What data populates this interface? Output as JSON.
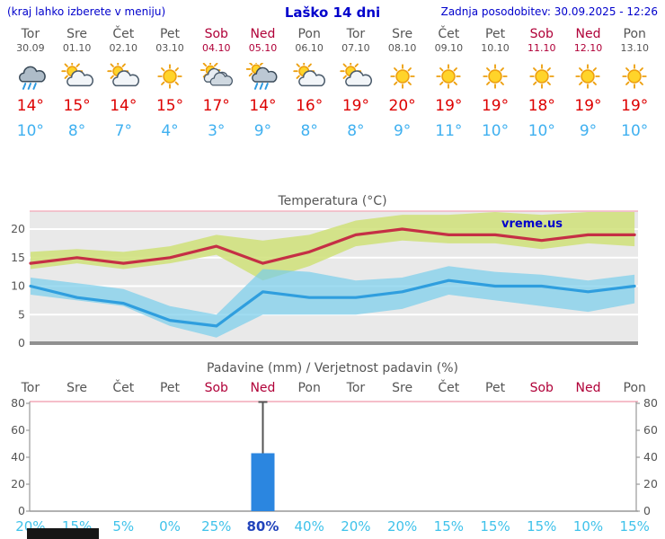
{
  "header": {
    "left": "(kraj lahko izberete v meniju)",
    "title": "Laško 14 dni",
    "right": "Zadnja posodobitev: 30.09.2025 - 12:26"
  },
  "branding": "vreme.us",
  "colors": {
    "link_blue": "#0000cc",
    "weekend_red": "#b00038",
    "tmax_red": "#dd0000",
    "tmin_blue": "#3fb0f0",
    "tmax_line": "#c52f45",
    "tmin_line": "#2f9ede",
    "tmax_band": "rgba(207,224,120,0.85)",
    "tmin_band": "rgba(120,205,235,0.70)",
    "bar_blue": "#2b86e0",
    "prob_cyan": "#3fc2ea",
    "prob_dark": "#2244bb",
    "chart_bg": "#e9e9e9",
    "pink_line": "#f2a8b8"
  },
  "days": [
    {
      "name": "Tor",
      "date": "30.09",
      "weekend": false,
      "icon": "rain",
      "tmax": 14,
      "tmin": 10
    },
    {
      "name": "Sre",
      "date": "01.10",
      "weekend": false,
      "icon": "partly",
      "tmax": 15,
      "tmin": 8
    },
    {
      "name": "Čet",
      "date": "02.10",
      "weekend": false,
      "icon": "partly",
      "tmax": 14,
      "tmin": 7
    },
    {
      "name": "Pet",
      "date": "03.10",
      "weekend": false,
      "icon": "sun",
      "tmax": 15,
      "tmin": 4
    },
    {
      "name": "Sob",
      "date": "04.10",
      "weekend": true,
      "icon": "cloudy",
      "tmax": 17,
      "tmin": 3
    },
    {
      "name": "Ned",
      "date": "05.10",
      "weekend": true,
      "icon": "rain-sun",
      "tmax": 14,
      "tmin": 9
    },
    {
      "name": "Pon",
      "date": "06.10",
      "weekend": false,
      "icon": "partly",
      "tmax": 16,
      "tmin": 8
    },
    {
      "name": "Tor",
      "date": "07.10",
      "weekend": false,
      "icon": "partly",
      "tmax": 19,
      "tmin": 8
    },
    {
      "name": "Sre",
      "date": "08.10",
      "weekend": false,
      "icon": "sun",
      "tmax": 20,
      "tmin": 9
    },
    {
      "name": "Čet",
      "date": "09.10",
      "weekend": false,
      "icon": "sun",
      "tmax": 19,
      "tmin": 11
    },
    {
      "name": "Pet",
      "date": "10.10",
      "weekend": false,
      "icon": "sun",
      "tmax": 19,
      "tmin": 10
    },
    {
      "name": "Sob",
      "date": "11.10",
      "weekend": true,
      "icon": "sun",
      "tmax": 18,
      "tmin": 10
    },
    {
      "name": "Ned",
      "date": "12.10",
      "weekend": true,
      "icon": "sun",
      "tmax": 19,
      "tmin": 9
    },
    {
      "name": "Pon",
      "date": "13.10",
      "weekend": false,
      "icon": "sun",
      "tmax": 19,
      "tmin": 10
    }
  ],
  "chart_data": [
    {
      "id": "temperature",
      "type": "line",
      "title": "Temperatura (°C)",
      "categories": [
        "Tor",
        "Sre",
        "Čet",
        "Pet",
        "Sob",
        "Ned",
        "Pon",
        "Tor",
        "Sre",
        "Čet",
        "Pet",
        "Sob",
        "Ned",
        "Pon"
      ],
      "ylim": [
        0,
        23
      ],
      "yticks": [
        0,
        5,
        10,
        15,
        20
      ],
      "grid": true,
      "watermark": "vreme.us",
      "series": [
        {
          "name": "tmax",
          "values": [
            14,
            15,
            14,
            15,
            17,
            14,
            16,
            19,
            20,
            19,
            19,
            18,
            19,
            19
          ]
        },
        {
          "name": "tmin",
          "values": [
            10,
            8,
            7,
            4,
            3,
            9,
            8,
            8,
            9,
            11,
            10,
            10,
            9,
            10
          ]
        },
        {
          "name": "tmax_band_hi",
          "values": [
            16,
            16.5,
            16,
            17,
            19,
            18,
            19,
            21.5,
            22.5,
            22.5,
            23,
            22.5,
            23,
            23
          ]
        },
        {
          "name": "tmax_band_lo",
          "values": [
            13,
            14,
            13,
            14,
            15.5,
            11,
            13.5,
            17,
            18,
            17.5,
            17.5,
            16.5,
            17.5,
            17
          ]
        },
        {
          "name": "tmin_band_hi",
          "values": [
            11.5,
            10.5,
            9.5,
            6.5,
            5,
            13,
            12.5,
            11,
            11.5,
            13.5,
            12.5,
            12,
            11,
            12
          ]
        },
        {
          "name": "tmin_band_lo",
          "values": [
            8.5,
            7.5,
            6.5,
            3,
            1,
            5,
            5,
            5,
            6,
            8.5,
            7.5,
            6.5,
            5.5,
            7
          ]
        }
      ]
    },
    {
      "id": "precipitation",
      "type": "bar",
      "title": "Padavine (mm) / Verjetnost padavin (%)",
      "categories": [
        "Tor",
        "Sre",
        "Čet",
        "Pet",
        "Sob",
        "Ned",
        "Pon",
        "Tor",
        "Sre",
        "Čet",
        "Pet",
        "Sob",
        "Ned",
        "Pon"
      ],
      "weekend_flags": [
        false,
        false,
        false,
        false,
        true,
        true,
        false,
        false,
        false,
        false,
        false,
        true,
        true,
        false
      ],
      "ylim": [
        0,
        80
      ],
      "yticks": [
        0,
        20,
        40,
        60,
        80
      ],
      "values_mm": [
        0,
        0,
        0,
        0,
        0,
        43,
        0,
        0,
        0,
        0,
        0,
        0,
        0,
        0
      ],
      "whisker_mm": [
        0,
        0,
        0,
        0,
        0,
        81,
        0,
        0,
        0,
        0,
        0,
        0,
        0,
        0
      ],
      "probability_pct": [
        20,
        15,
        5,
        0,
        25,
        80,
        40,
        20,
        20,
        15,
        15,
        15,
        10,
        15
      ]
    }
  ]
}
